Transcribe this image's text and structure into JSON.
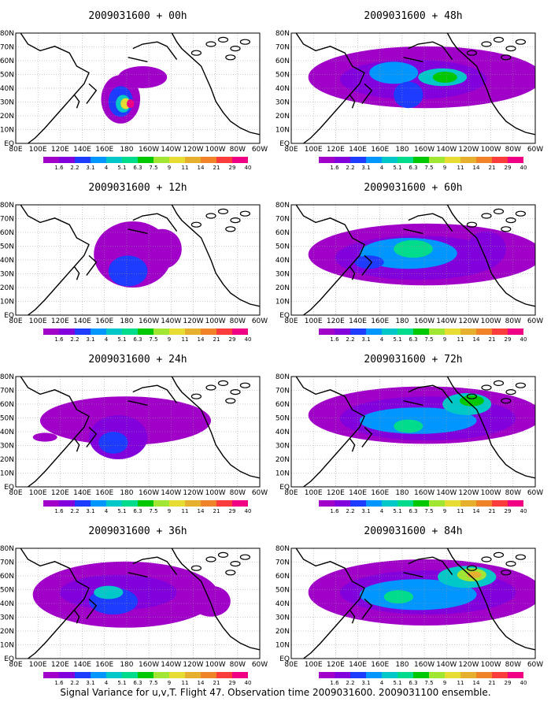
{
  "caption": "Signal Variance for u,v,T. Flight 47. Observation time 2009031600. 2009031100 ensemble.",
  "lon_labels": [
    "80E",
    "100E",
    "120E",
    "140E",
    "160E",
    "180",
    "160W",
    "140W",
    "120W",
    "100W",
    "80W",
    "60W"
  ],
  "lat_labels": [
    "80N",
    "70N",
    "60N",
    "50N",
    "40N",
    "30N",
    "20N",
    "10N",
    "EQ"
  ],
  "colorbar": {
    "levels": [
      "1.6",
      "2.2",
      "3.1",
      "4",
      "5.1",
      "6.3",
      "7.5",
      "9",
      "11",
      "14",
      "21",
      "29",
      "40"
    ],
    "colors": [
      "#a000c8",
      "#8200dc",
      "#1e3cff",
      "#0096ff",
      "#00c8c8",
      "#00dc8c",
      "#00c800",
      "#a0e632",
      "#e6dc32",
      "#e6af2d",
      "#f08228",
      "#fa3c3c",
      "#f00082"
    ]
  },
  "panels": [
    {
      "title": "2009031600 + 00h"
    },
    {
      "title": "2009031600 + 48h"
    },
    {
      "title": "2009031600 + 12h"
    },
    {
      "title": "2009031600 + 60h"
    },
    {
      "title": "2009031600 + 24h"
    },
    {
      "title": "2009031600 + 72h"
    },
    {
      "title": "2009031600 + 36h"
    },
    {
      "title": "2009031600 + 84h"
    }
  ]
}
